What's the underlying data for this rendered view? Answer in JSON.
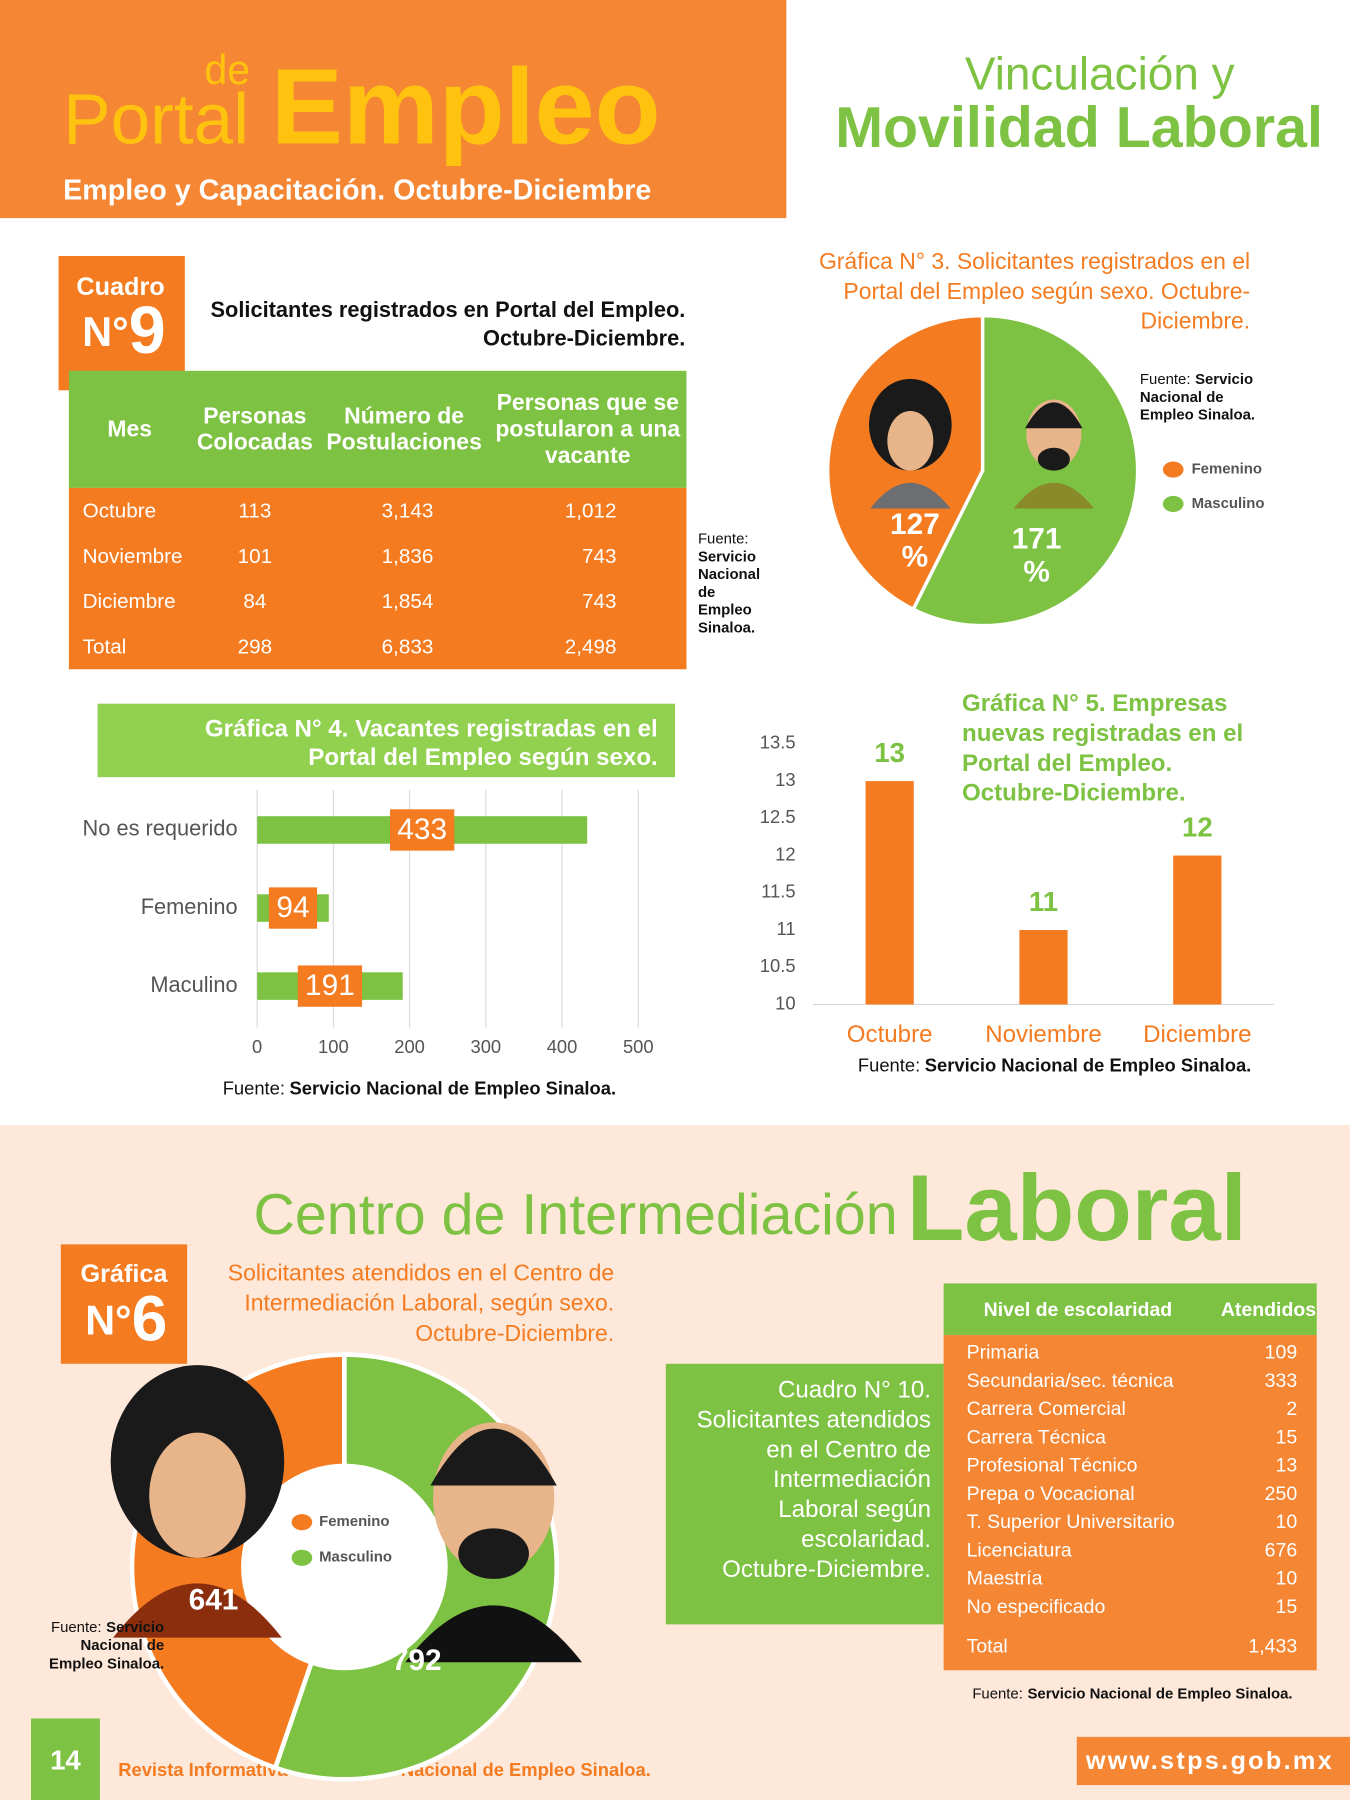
{
  "header": {
    "pre": "de",
    "word": "Portal",
    "big": "Empleo",
    "subtitle": "Empleo y Capacitación. Octubre-Diciembre",
    "right_1": "Vinculación y",
    "right_2": "Movilidad Laboral"
  },
  "cuadro9": {
    "badge": "Cuadro",
    "badge_no": "N°",
    "badge_num": "9",
    "title": [
      "Solicitantes registrados en Portal del Empleo.",
      "Octubre-Diciembre."
    ],
    "columns": [
      [
        "Mes"
      ],
      [
        "Personas",
        "Colocadas"
      ],
      [
        "Número de",
        "Postulaciones"
      ],
      [
        "Personas que se",
        "postularon a una",
        "vacante"
      ]
    ],
    "rows": [
      [
        "Octubre",
        "113",
        "3,143",
        "1,012"
      ],
      [
        "Noviembre",
        "101",
        "1,836",
        "743"
      ],
      [
        "Diciembre",
        "84",
        "1,854",
        "743"
      ],
      [
        "Total",
        "298",
        "6,833",
        "2,498"
      ]
    ],
    "source": {
      "label": "Fuente:",
      "lines": [
        "Servicio",
        "Nacional",
        "de",
        "Empleo",
        "Sinaloa."
      ]
    }
  },
  "chart_data": [
    {
      "type": "pie",
      "title": [
        "Gráfica N° 3. Solicitantes registrados en el",
        "Portal del Empleo según sexo. Octubre-",
        "Diciembre."
      ],
      "categories": [
        "Femenino",
        "Masculino"
      ],
      "values": [
        127,
        171
      ],
      "value_labels": [
        "127 %",
        "171 %"
      ],
      "colors": [
        "#f47b20",
        "#7dc242"
      ],
      "source": {
        "label": "Fuente:",
        "lines": [
          "Servicio",
          "Nacional de",
          "Empleo Sinaloa."
        ]
      }
    },
    {
      "type": "bar",
      "orientation": "horizontal",
      "title": [
        "Gráfica N° 4. Vacantes registradas en el",
        "Portal del Empleo según sexo."
      ],
      "categories": [
        "No es requerido",
        "Femenino",
        "Maculino"
      ],
      "values": [
        433,
        94,
        191
      ],
      "color": "#7dc242",
      "label_color": "#f47b20",
      "xlim": [
        0,
        500
      ],
      "xticks": [
        0,
        100,
        200,
        300,
        400,
        500
      ],
      "grid": true,
      "source": {
        "label": "Fuente:",
        "lines": [
          "Servicio Nacional de Empleo Sinaloa."
        ]
      }
    },
    {
      "type": "bar",
      "orientation": "vertical",
      "title": [
        "Gráfica N° 5. Empresas",
        "nuevas registradas en el",
        "Portal del Empleo.",
        "Octubre-Diciembre."
      ],
      "categories": [
        "Octubre",
        "Noviembre",
        "Diciembre"
      ],
      "values": [
        13,
        11,
        12
      ],
      "color": "#f47b20",
      "label_color": "#7dc242",
      "category_color": "#f47b20",
      "ylim": [
        10,
        13.5
      ],
      "yticks": [
        10,
        10.5,
        11,
        11.5,
        12,
        12.5,
        13,
        13.5
      ],
      "grid": false,
      "source": {
        "label": "Fuente:",
        "lines": [
          "Servicio Nacional de Empleo Sinaloa."
        ]
      }
    },
    {
      "type": "donut",
      "badge": "Gráfica",
      "badge_no": "N°",
      "badge_num": "6",
      "title": [
        "Solicitantes atendidos en el Centro de",
        "Intermediación Laboral, según sexo.",
        "Octubre-Diciembre."
      ],
      "categories": [
        "Femenino",
        "Masculino"
      ],
      "values": [
        641,
        792
      ],
      "colors": [
        "#f47b20",
        "#7dc242"
      ],
      "source": {
        "label": "Fuente:",
        "lines": [
          "Servicio",
          "Nacional de",
          "Empleo Sinaloa."
        ]
      }
    }
  ],
  "section2": {
    "title_1": "Centro de Intermediación",
    "title_2": "Laboral"
  },
  "cuadro10": {
    "title": [
      "Cuadro N° 10.",
      "Solicitantes atendidos",
      "en el Centro de",
      "Intermediación",
      "Laboral según",
      "escolaridad.",
      "Octubre-Diciembre."
    ],
    "columns": [
      "Nivel de escolaridad",
      "Atendidos"
    ],
    "rows": [
      [
        "Primaria",
        "109"
      ],
      [
        "Secundaria/sec. técnica",
        "333"
      ],
      [
        "Carrera Comercial",
        "2"
      ],
      [
        "Carrera Técnica",
        "15"
      ],
      [
        "Profesional Técnico",
        "13"
      ],
      [
        "Prepa o Vocacional",
        "250"
      ],
      [
        "T. Superior Universitario",
        "10"
      ],
      [
        "Licenciatura",
        "676"
      ],
      [
        "Maestría",
        "10"
      ],
      [
        "No especificado",
        "15"
      ]
    ],
    "total": [
      "Total",
      "1,433"
    ],
    "source": {
      "label": "Fuente:",
      "lines": [
        "Servicio Nacional de Empleo Sinaloa."
      ]
    }
  },
  "footer": {
    "page": "14",
    "text": "Revista Informativa del Servicio Nacional de Empleo Sinaloa.",
    "url": "www.stps.gob.mx"
  }
}
